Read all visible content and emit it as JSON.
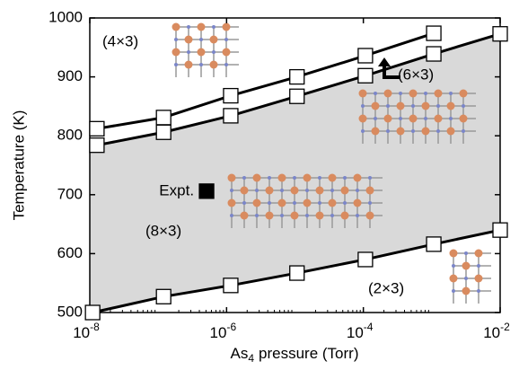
{
  "chart_data": {
    "type": "line",
    "xscale": "log",
    "xlabel": [
      "As",
      "4",
      "pressure (Torr)"
    ],
    "ylabel": "Temperature (K)",
    "xlim": [
      1e-08,
      0.01
    ],
    "ylim": [
      500,
      1000
    ],
    "xticks": [
      {
        "value": 1e-08,
        "label": "10",
        "exponent": "-8"
      },
      {
        "value": 1e-06,
        "label": "10",
        "exponent": "-6"
      },
      {
        "value": 0.0001,
        "label": "10",
        "exponent": "-4"
      },
      {
        "value": 0.01,
        "label": "10",
        "exponent": "-2"
      }
    ],
    "yticks": [
      500,
      600,
      700,
      800,
      900,
      1000
    ],
    "shade_color": "#d9d9d9",
    "series": [
      {
        "color": "#000000",
        "marker": "square",
        "x": [
          1.27e-08,
          1.2e-07,
          1.15e-06,
          1.07e-05,
          0.000107,
          0.00107
        ],
        "values": [
          812,
          831,
          868,
          900,
          936,
          974
        ]
      },
      {
        "color": "#000000",
        "marker": "square",
        "x": [
          1.27e-08,
          1.2e-07,
          1.15e-06,
          1.07e-05,
          0.000107,
          0.00107,
          0.01
        ],
        "values": [
          784,
          806,
          834,
          867,
          902,
          939,
          973
        ]
      },
      {
        "color": "#000000",
        "marker": "square",
        "x": [
          1.1e-08,
          1.2e-07,
          1.15e-06,
          1.07e-05,
          0.000107,
          0.00107,
          0.01
        ],
        "values": [
          500,
          527,
          546,
          567,
          590,
          616,
          640
        ]
      },
      {
        "name": "Expt.",
        "color": "#000000",
        "marker": "filled-square",
        "x": [
          5.1e-07
        ],
        "values": [
          706
        ]
      }
    ],
    "annotations": [
      "(4×3)",
      "(6×3)",
      "(8×3)",
      "(2×3)"
    ]
  }
}
